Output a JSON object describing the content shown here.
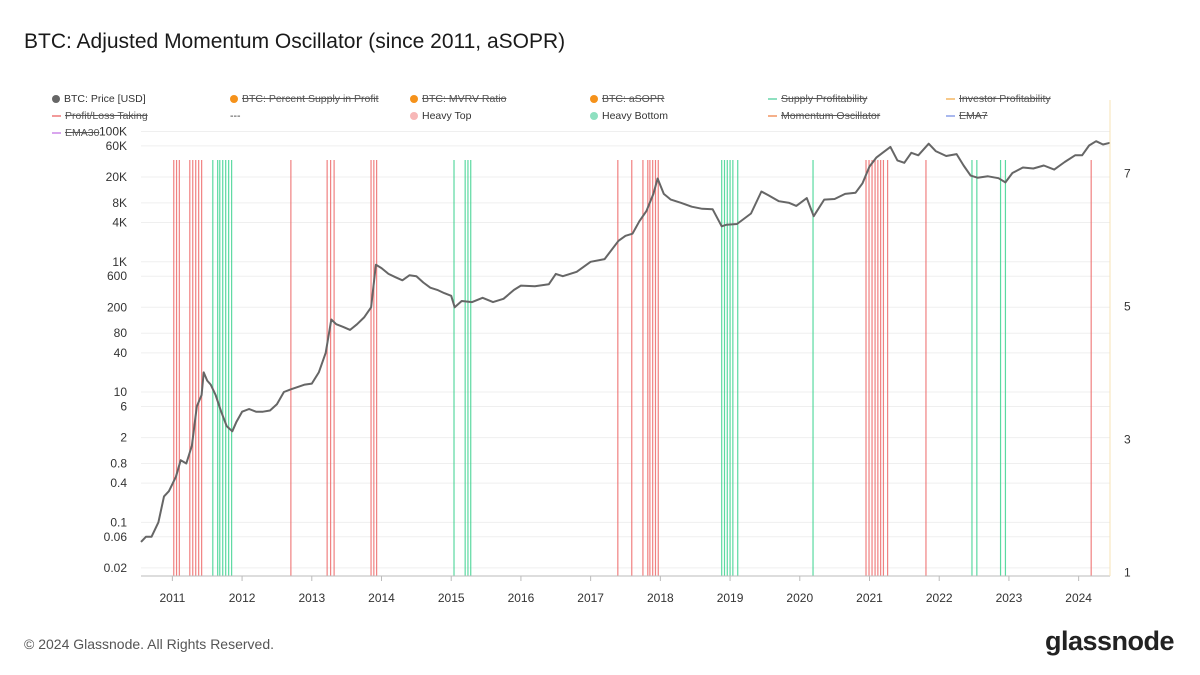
{
  "title": "BTC: Adjusted Momentum Oscillator (since 2011, aSOPR)",
  "legend": [
    {
      "label": "BTC: Price [USD]",
      "color": "#666666",
      "marker": "dot",
      "struck": false
    },
    {
      "label": "BTC: Percent Supply in Profit",
      "color": "#f5921b",
      "marker": "dot",
      "struck": true
    },
    {
      "label": "BTC: MVRV Ratio",
      "color": "#f5921b",
      "marker": "dot",
      "struck": true
    },
    {
      "label": "BTC: aSOPR",
      "color": "#f5921b",
      "marker": "dot",
      "struck": true
    },
    {
      "label": "Supply Profitability",
      "color": "#8ee0c0",
      "marker": "line",
      "struck": true
    },
    {
      "label": "Investor Profitability",
      "color": "#f7c98a",
      "marker": "line",
      "struck": true
    },
    {
      "label": "Profit/Loss Taking",
      "color": "#f29a9a",
      "marker": "line",
      "struck": true
    },
    {
      "label": "---",
      "color": "",
      "marker": "none",
      "struck": false
    },
    {
      "label": "Heavy Top",
      "color": "#f7b7b7",
      "marker": "dot",
      "struck": false
    },
    {
      "label": "Heavy Bottom",
      "color": "#8ee0c0",
      "marker": "dot",
      "struck": false
    },
    {
      "label": "Momentum Oscillator",
      "color": "#f5b08a",
      "marker": "line",
      "struck": true
    },
    {
      "label": "EMA7",
      "color": "#a9b8ee",
      "marker": "line",
      "struck": true
    },
    {
      "label": "EMA30",
      "color": "#d9a6ee",
      "marker": "line",
      "struck": true
    }
  ],
  "chart_data": {
    "type": "line",
    "yscale": "log",
    "ylim": [
      0.015,
      150000
    ],
    "y_ticks": [
      "100K",
      "60K",
      "20K",
      "8K",
      "4K",
      "1K",
      "600",
      "200",
      "80",
      "40",
      "10",
      "6",
      "2",
      "0.8",
      "0.4",
      "0.1",
      "0.06",
      "0.02"
    ],
    "y_tick_values": [
      100000,
      60000,
      20000,
      8000,
      4000,
      1000,
      600,
      200,
      80,
      40,
      10,
      6,
      2,
      0.8,
      0.4,
      0.1,
      0.06,
      0.02
    ],
    "y2_ticks": [
      "7",
      "5",
      "3",
      "1"
    ],
    "y2_tick_values": [
      7,
      5,
      3,
      1
    ],
    "y2lim": [
      0.95,
      7.8
    ],
    "xlim": [
      2010.55,
      2024.45
    ],
    "x_ticks": [
      "2011",
      "2012",
      "2013",
      "2014",
      "2015",
      "2016",
      "2017",
      "2018",
      "2019",
      "2020",
      "2021",
      "2022",
      "2023",
      "2024"
    ],
    "x_tick_values": [
      2011,
      2012,
      2013,
      2014,
      2015,
      2016,
      2017,
      2018,
      2019,
      2020,
      2021,
      2022,
      2023,
      2024
    ],
    "series": [
      {
        "name": "BTC: Price [USD]",
        "color": "#666666",
        "x": [
          2010.55,
          2010.62,
          2010.7,
          2010.8,
          2010.88,
          2010.95,
          2011.05,
          2011.12,
          2011.2,
          2011.28,
          2011.35,
          2011.42,
          2011.45,
          2011.5,
          2011.55,
          2011.62,
          2011.7,
          2011.78,
          2011.86,
          2011.92,
          2012.0,
          2012.1,
          2012.2,
          2012.3,
          2012.4,
          2012.5,
          2012.6,
          2012.7,
          2012.8,
          2012.9,
          2013.0,
          2013.1,
          2013.2,
          2013.28,
          2013.35,
          2013.45,
          2013.55,
          2013.65,
          2013.75,
          2013.85,
          2013.92,
          2014.0,
          2014.1,
          2014.2,
          2014.3,
          2014.4,
          2014.5,
          2014.6,
          2014.7,
          2014.8,
          2014.9,
          2015.0,
          2015.05,
          2015.15,
          2015.3,
          2015.45,
          2015.6,
          2015.75,
          2015.9,
          2016.0,
          2016.2,
          2016.4,
          2016.5,
          2016.6,
          2016.8,
          2017.0,
          2017.2,
          2017.4,
          2017.5,
          2017.6,
          2017.7,
          2017.8,
          2017.9,
          2017.96,
          2018.05,
          2018.15,
          2018.3,
          2018.45,
          2018.6,
          2018.75,
          2018.88,
          2018.95,
          2019.1,
          2019.3,
          2019.45,
          2019.55,
          2019.7,
          2019.85,
          2019.95,
          2020.1,
          2020.2,
          2020.35,
          2020.5,
          2020.65,
          2020.8,
          2020.9,
          2021.0,
          2021.1,
          2021.2,
          2021.3,
          2021.4,
          2021.5,
          2021.6,
          2021.7,
          2021.85,
          2021.95,
          2022.1,
          2022.25,
          2022.35,
          2022.45,
          2022.55,
          2022.7,
          2022.85,
          2022.95,
          2023.05,
          2023.2,
          2023.35,
          2023.5,
          2023.65,
          2023.8,
          2023.95,
          2024.05,
          2024.15,
          2024.25,
          2024.35,
          2024.45
        ],
        "values": [
          0.05,
          0.06,
          0.06,
          0.1,
          0.25,
          0.3,
          0.5,
          0.9,
          0.8,
          1.5,
          6,
          9,
          20,
          15,
          13,
          9,
          5,
          3,
          2.5,
          3.5,
          5,
          5.5,
          5,
          5,
          5.2,
          6.5,
          10,
          11,
          12,
          13,
          13.5,
          20,
          40,
          130,
          110,
          100,
          90,
          110,
          140,
          200,
          900,
          800,
          650,
          580,
          520,
          620,
          600,
          480,
          400,
          370,
          330,
          300,
          200,
          250,
          240,
          280,
          240,
          270,
          370,
          430,
          420,
          450,
          650,
          600,
          700,
          1000,
          1100,
          2100,
          2500,
          2700,
          4200,
          6000,
          11000,
          19000,
          11000,
          9000,
          8000,
          7000,
          6500,
          6400,
          3500,
          3700,
          3800,
          5500,
          12000,
          10500,
          8500,
          8000,
          7200,
          9500,
          5000,
          9000,
          9200,
          11000,
          11500,
          16000,
          29000,
          40000,
          48000,
          58000,
          36000,
          33000,
          47000,
          43000,
          65000,
          50000,
          42000,
          45000,
          30000,
          21000,
          19500,
          20500,
          19200,
          16500,
          23000,
          28000,
          27000,
          30000,
          26000,
          34000,
          43000,
          43000,
          61000,
          71000,
          63000,
          67000
        ]
      }
    ],
    "bands": [
      {
        "name": "Heavy Top",
        "color": "#ee6b6b",
        "ranges": [
          [
            2011.02,
            2011.1
          ],
          [
            2011.25,
            2011.42
          ],
          [
            2012.68,
            2012.72
          ],
          [
            2013.22,
            2013.32
          ],
          [
            2013.85,
            2013.93
          ],
          [
            2017.38,
            2017.4
          ],
          [
            2017.58,
            2017.6
          ],
          [
            2017.75,
            2017.82
          ],
          [
            2017.85,
            2017.97
          ],
          [
            2020.95,
            2021.08
          ],
          [
            2021.12,
            2021.2
          ],
          [
            2021.25,
            2021.27
          ],
          [
            2021.8,
            2021.82
          ],
          [
            2024.17,
            2024.19
          ]
        ]
      },
      {
        "name": "Heavy Bottom",
        "color": "#3fd391",
        "ranges": [
          [
            2011.58,
            2011.65
          ],
          [
            2011.68,
            2011.85
          ],
          [
            2015.02,
            2015.06
          ],
          [
            2015.2,
            2015.28
          ],
          [
            2018.88,
            2019.04
          ],
          [
            2019.1,
            2019.12
          ],
          [
            2020.18,
            2020.2
          ],
          [
            2022.47,
            2022.54
          ],
          [
            2022.88,
            2022.95
          ]
        ]
      }
    ]
  },
  "footer": {
    "copyright": "© 2024 Glassnode. All Rights Reserved.",
    "logo": "glassnode"
  }
}
